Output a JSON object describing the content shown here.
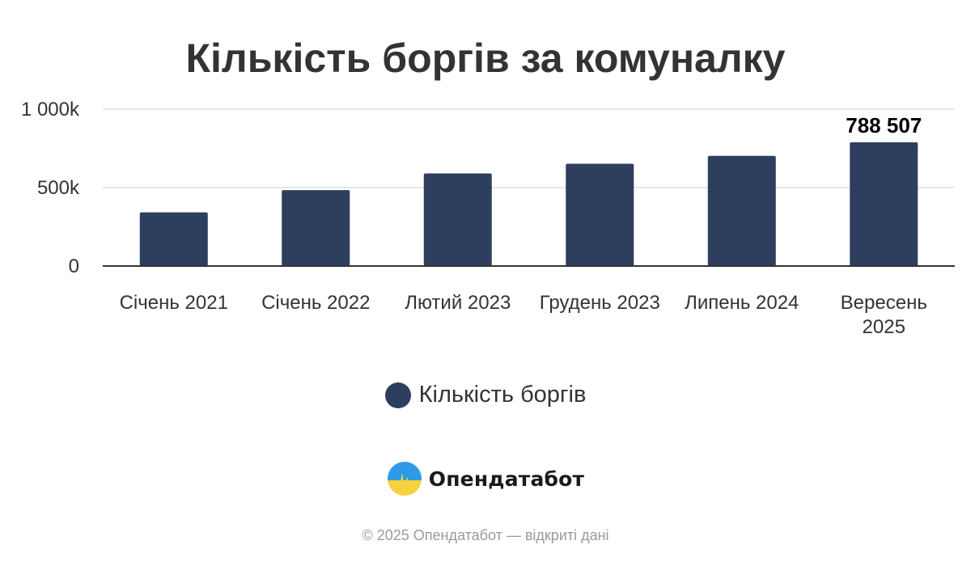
{
  "chart_data": {
    "type": "bar",
    "title": "Кількість боргів за комуналку",
    "categories": [
      "Січень 2021",
      "Січень 2022",
      "Лютий 2023",
      "Грудень 2023",
      "Липень 2024",
      "Вересень 2025"
    ],
    "series": [
      {
        "name": "Кількість боргів",
        "values": [
          342000,
          484000,
          590000,
          652000,
          702000,
          788507
        ],
        "color": "#2e3e5e"
      }
    ],
    "data_labels": [
      {
        "index": 5,
        "text": "788 507"
      }
    ],
    "yticks": [
      {
        "value": 0,
        "label": "0"
      },
      {
        "value": 500000,
        "label": "500k"
      },
      {
        "value": 1000000,
        "label": "1 000k"
      }
    ],
    "ylim": [
      0,
      1000000
    ],
    "grid": true,
    "legend_position": "bottom-center"
  },
  "brand": {
    "name": "Опендатабот",
    "logo_icon": "opendatabot-logo-icon"
  },
  "footer": {
    "text": "© 2025 Опендатабот — відкриті дані"
  },
  "colors": {
    "bar": "#2e3e5e",
    "grid": "#e6e6e6",
    "axis": "#333333",
    "title": "#333333",
    "logo_blue": "#2f9be8",
    "logo_yellow": "#f7d23c"
  }
}
